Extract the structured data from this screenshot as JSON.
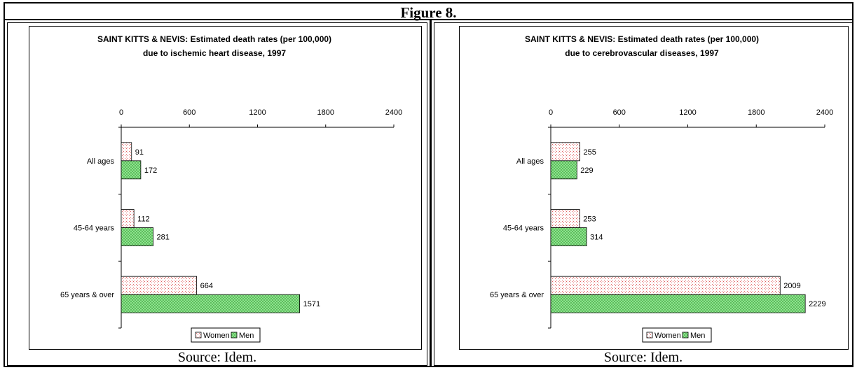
{
  "figure": {
    "title": "Figure 8.",
    "source_left": "Source: Idem.",
    "source_right": "Source: Idem."
  },
  "chart_data": [
    {
      "type": "bar",
      "orientation": "horizontal",
      "title_line1": "SAINT KITTS & NEVIS: Estimated death rates (per 100,000)",
      "title_line2": "due to ischemic heart disease, 1997",
      "categories": [
        "All ages",
        "45-64 years",
        "65 years & over"
      ],
      "series": [
        {
          "name": "Women",
          "values": [
            91,
            112,
            664
          ],
          "color": "#f7e4e4",
          "pattern": "dots-red"
        },
        {
          "name": "Men",
          "values": [
            172,
            281,
            1571
          ],
          "color": "#7fd67f",
          "pattern": "checker-green"
        }
      ],
      "xlim": [
        0,
        2400
      ],
      "xticks": [
        0,
        600,
        1200,
        1800,
        2400
      ],
      "legend": "bottom",
      "grid": false
    },
    {
      "type": "bar",
      "orientation": "horizontal",
      "title_line1": "SAINT KITTS & NEVIS: Estimated death rates (per 100,000)",
      "title_line2": "due to cerebrovascular diseases, 1997",
      "categories": [
        "All ages",
        "45-64 years",
        "65 years & over"
      ],
      "series": [
        {
          "name": "Women",
          "values": [
            255,
            253,
            2009
          ],
          "color": "#f7e4e4",
          "pattern": "dots-red"
        },
        {
          "name": "Men",
          "values": [
            229,
            314,
            2229
          ],
          "color": "#7fd67f",
          "pattern": "checker-green"
        }
      ],
      "xlim": [
        0,
        2400
      ],
      "xticks": [
        0,
        600,
        1200,
        1800,
        2400
      ],
      "legend": "bottom",
      "grid": false
    }
  ]
}
